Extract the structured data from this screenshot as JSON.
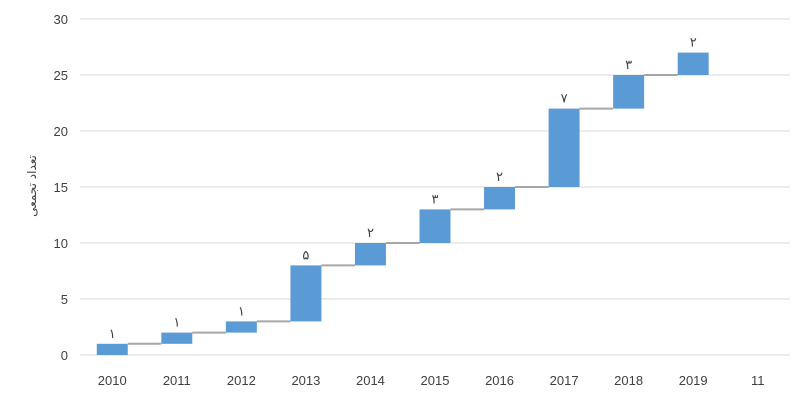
{
  "chart_data": {
    "type": "bar",
    "subtype": "waterfall",
    "ylabel": "تعداد تجمعی",
    "ylim": [
      0,
      30
    ],
    "yticks": [
      "0",
      "5",
      "10",
      "15",
      "20",
      "25",
      "30"
    ],
    "grid": true,
    "categories": [
      "2010",
      "2011",
      "2012",
      "2013",
      "2014",
      "2015",
      "2016",
      "2017",
      "2018",
      "2019",
      "11"
    ],
    "increments": [
      1,
      1,
      1,
      5,
      2,
      3,
      2,
      7,
      3,
      2,
      null
    ],
    "cumulative": [
      1,
      2,
      3,
      8,
      10,
      13,
      15,
      22,
      25,
      27,
      null
    ],
    "data_labels": [
      "۱",
      "۱",
      "۱",
      "۵",
      "۲",
      "۳",
      "۲",
      "۷",
      "۳",
      "۲",
      ""
    ],
    "bar_color": "#5b9bd5",
    "connector_color": "#a6a6a6",
    "grid_color": "#d9d9d9"
  }
}
